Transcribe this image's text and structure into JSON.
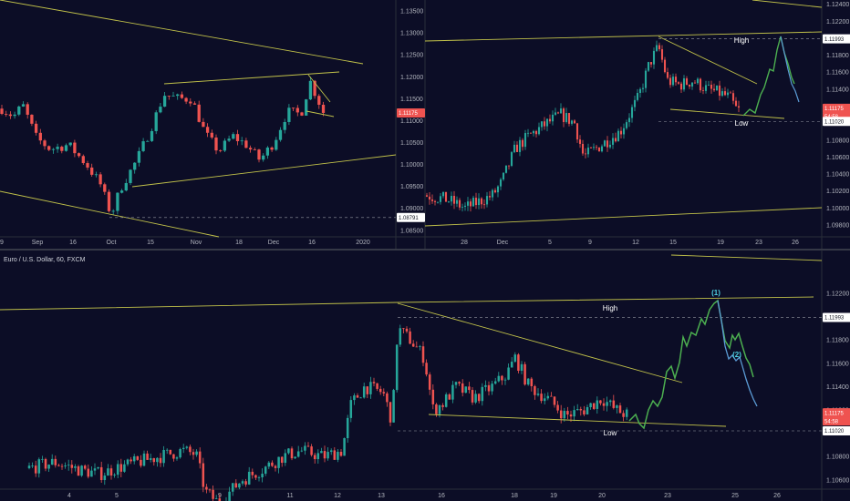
{
  "colors": {
    "background": "#0c0d26",
    "up": "#26a69a",
    "down": "#ef5350",
    "trend": "#c2c24a",
    "projection_green": "#4caf50",
    "projection_blue": "#5b9bd5",
    "price_tag": "#ef5350",
    "level_tag": "#ffffff"
  },
  "chart_data": [
    {
      "type": "candlestick",
      "panel": "top-left (daily)",
      "x_tick_labels": [
        "9",
        "Sep",
        "16",
        "Oct",
        "15",
        "Nov",
        "18",
        "Dec",
        "16",
        "2020"
      ],
      "y_tick_labels": [
        "1.13500",
        "1.13000",
        "1.12500",
        "1.12000",
        "1.11500",
        "1.11000",
        "1.10500",
        "1.10000",
        "1.09500",
        "1.09000",
        "1.08500"
      ],
      "ylim": [
        1.0835,
        1.1375
      ],
      "price_tags": [
        "1.11175",
        "1.08791"
      ],
      "last_price": 1.11175,
      "marked_low": 1.08791
    },
    {
      "type": "candlestick",
      "panel": "top-right (4h)",
      "x_tick_labels": [
        "28",
        "Dec",
        "5",
        "9",
        "12",
        "15",
        "19",
        "23",
        "26"
      ],
      "y_tick_labels": [
        "1.12400",
        "1.12200",
        "1.12000",
        "1.11800",
        "1.11600",
        "1.11400",
        "1.11200",
        "1.11000",
        "1.10800",
        "1.10600",
        "1.10400",
        "1.10200",
        "1.10000",
        "1.09800"
      ],
      "ylim": [
        1.0966,
        1.1245
      ],
      "price_tags": [
        "1.11993",
        "1.11175",
        "54:58",
        "1.11020"
      ],
      "high_level": 1.11993,
      "low_level": 1.1102,
      "annotations": [
        "High",
        "Low"
      ]
    },
    {
      "type": "candlestick",
      "panel": "bottom (60 min)",
      "title": "Euro / U.S. Dollar, 60, FXCM",
      "x_tick_labels": [
        "4",
        "5",
        "9",
        "11",
        "12",
        "13",
        "16",
        "18",
        "19",
        "20",
        "23",
        "25",
        "26"
      ],
      "y_tick_labels": [
        "1.12200",
        "1.12000",
        "1.11800",
        "1.11600",
        "1.11400",
        "1.11200",
        "1.11000",
        "1.10800",
        "1.10600"
      ],
      "ylim": [
        1.1052,
        1.1245
      ],
      "price_tags": [
        "1.11993",
        "1.11175",
        "54:58",
        "1.11020"
      ],
      "high_level": 1.11993,
      "low_level": 1.1102,
      "annotations": [
        "High",
        "Low",
        "(1)",
        "(2)"
      ]
    }
  ]
}
